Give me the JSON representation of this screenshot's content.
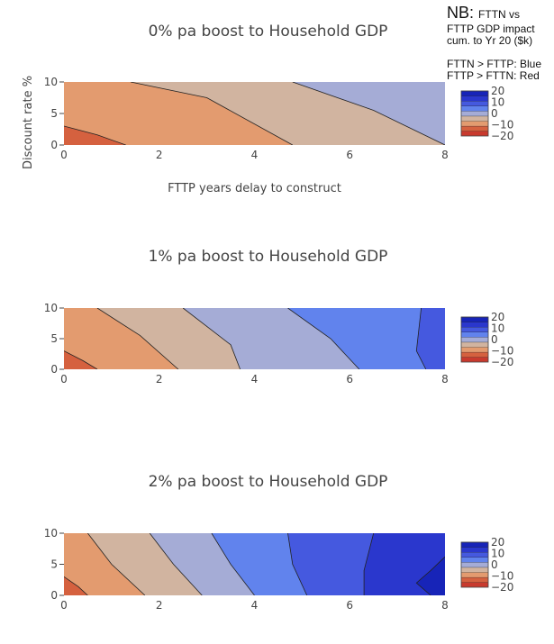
{
  "note": {
    "nb_label": "NB:",
    "nb_text": "FTTN vs",
    "line2": "FTTP GDP impact",
    "line3": "cum. to Yr 20 ($k)",
    "line4": "FTTN > FTTP: Blue",
    "line5": "FTTP > FTTN: Red"
  },
  "colors": {
    "levels": [
      "#c83a2e",
      "#d5613f",
      "#e39b6f",
      "#d1b4a0",
      "#a5acd6",
      "#6183ed",
      "#4559df",
      "#2a37cd",
      "#1724b8"
    ],
    "contour_line": "#222222"
  },
  "chart_data": [
    {
      "type": "contour",
      "title": "0% pa boost to Household GDP",
      "xlabel": "FTTP years delay to construct",
      "ylabel": "Discount rate %",
      "xlim": [
        0,
        8
      ],
      "ylim": [
        0,
        10
      ],
      "x_ticks": [
        "0",
        "2",
        "4",
        "6",
        "8"
      ],
      "y_ticks": [
        "0",
        "5",
        "10"
      ],
      "colorbar_ticks": [
        "20",
        "10",
        "0",
        "−10",
        "−20"
      ],
      "colorbar_range": [
        -20,
        20
      ],
      "regions": [
        {
          "level": 2,
          "polygon": [
            [
              0,
              0
            ],
            [
              8,
              0
            ],
            [
              8,
              10
            ],
            [
              0,
              10
            ]
          ]
        },
        {
          "level": 3,
          "polygon": [
            [
              1.4,
              10
            ],
            [
              3,
              7.5
            ],
            [
              4.8,
              0
            ],
            [
              8,
              0
            ],
            [
              8,
              10
            ]
          ]
        },
        {
          "level": 4,
          "polygon": [
            [
              4.8,
              10
            ],
            [
              6.5,
              5.5
            ],
            [
              8,
              0
            ],
            [
              8,
              10
            ]
          ]
        },
        {
          "level": 1,
          "polygon": [
            [
              0,
              0
            ],
            [
              0,
              3
            ],
            [
              0.7,
              1.6
            ],
            [
              1.3,
              0
            ]
          ]
        }
      ],
      "contours": [
        [
          [
            0,
            3
          ],
          [
            0.7,
            1.6
          ],
          [
            1.3,
            0
          ]
        ],
        [
          [
            1.4,
            10
          ],
          [
            3,
            7.5
          ],
          [
            4.8,
            0
          ]
        ],
        [
          [
            4.8,
            10
          ],
          [
            6.5,
            5.5
          ],
          [
            8,
            0
          ]
        ]
      ]
    },
    {
      "type": "contour",
      "title": "1% pa boost to Household GDP",
      "xlabel": "",
      "ylabel": "",
      "xlim": [
        0,
        8
      ],
      "ylim": [
        0,
        10
      ],
      "x_ticks": [
        "0",
        "2",
        "4",
        "6",
        "8"
      ],
      "y_ticks": [
        "0",
        "5",
        "10"
      ],
      "colorbar_ticks": [
        "20",
        "10",
        "0",
        "−10",
        "−20"
      ],
      "colorbar_range": [
        -20,
        20
      ],
      "regions": [
        {
          "level": 2,
          "polygon": [
            [
              0,
              0
            ],
            [
              8,
              0
            ],
            [
              8,
              10
            ],
            [
              0,
              10
            ]
          ]
        },
        {
          "level": 3,
          "polygon": [
            [
              0.7,
              10
            ],
            [
              1.6,
              5.5
            ],
            [
              2.4,
              0
            ],
            [
              8,
              0
            ],
            [
              8,
              10
            ]
          ]
        },
        {
          "level": 4,
          "polygon": [
            [
              2.5,
              10
            ],
            [
              3.5,
              4
            ],
            [
              3.7,
              0
            ],
            [
              8,
              0
            ],
            [
              8,
              10
            ]
          ]
        },
        {
          "level": 5,
          "polygon": [
            [
              4.7,
              10
            ],
            [
              5.6,
              5
            ],
            [
              6.2,
              0
            ],
            [
              8,
              0
            ],
            [
              8,
              10
            ]
          ]
        },
        {
          "level": 6,
          "polygon": [
            [
              7.5,
              10
            ],
            [
              7.4,
              3
            ],
            [
              7.6,
              0
            ],
            [
              8,
              0
            ],
            [
              8,
              10
            ]
          ]
        },
        {
          "level": 1,
          "polygon": [
            [
              0,
              0
            ],
            [
              0,
              3
            ],
            [
              0.4,
              1.4
            ],
            [
              0.7,
              0
            ]
          ]
        }
      ],
      "contours": [
        [
          [
            0,
            3
          ],
          [
            0.4,
            1.4
          ],
          [
            0.7,
            0
          ]
        ],
        [
          [
            0.7,
            10
          ],
          [
            1.6,
            5.5
          ],
          [
            2.4,
            0
          ]
        ],
        [
          [
            2.5,
            10
          ],
          [
            3.5,
            4
          ],
          [
            3.7,
            0
          ]
        ],
        [
          [
            4.7,
            10
          ],
          [
            5.6,
            5
          ],
          [
            6.2,
            0
          ]
        ],
        [
          [
            7.5,
            10
          ],
          [
            7.4,
            3
          ],
          [
            7.6,
            0
          ]
        ]
      ]
    },
    {
      "type": "contour",
      "title": "2% pa boost to Household GDP",
      "xlabel": "",
      "ylabel": "",
      "xlim": [
        0,
        8
      ],
      "ylim": [
        0,
        10
      ],
      "x_ticks": [
        "0",
        "2",
        "4",
        "6",
        "8"
      ],
      "y_ticks": [
        "0",
        "5",
        "10"
      ],
      "colorbar_ticks": [
        "20",
        "10",
        "0",
        "−10",
        "−20"
      ],
      "colorbar_range": [
        -20,
        20
      ],
      "regions": [
        {
          "level": 2,
          "polygon": [
            [
              0,
              0
            ],
            [
              8,
              0
            ],
            [
              8,
              10
            ],
            [
              0,
              10
            ]
          ]
        },
        {
          "level": 3,
          "polygon": [
            [
              0.5,
              10
            ],
            [
              1,
              5
            ],
            [
              1.7,
              0
            ],
            [
              8,
              0
            ],
            [
              8,
              10
            ]
          ]
        },
        {
          "level": 4,
          "polygon": [
            [
              1.8,
              10
            ],
            [
              2.3,
              5
            ],
            [
              2.9,
              0
            ],
            [
              8,
              0
            ],
            [
              8,
              10
            ]
          ]
        },
        {
          "level": 5,
          "polygon": [
            [
              3.1,
              10
            ],
            [
              3.5,
              5
            ],
            [
              4.0,
              0
            ],
            [
              8,
              0
            ],
            [
              8,
              10
            ]
          ]
        },
        {
          "level": 6,
          "polygon": [
            [
              4.7,
              10
            ],
            [
              4.8,
              5
            ],
            [
              5.1,
              0
            ],
            [
              8,
              0
            ],
            [
              8,
              10
            ]
          ]
        },
        {
          "level": 7,
          "polygon": [
            [
              6.5,
              10
            ],
            [
              6.3,
              4
            ],
            [
              6.3,
              0
            ],
            [
              8,
              0
            ],
            [
              8,
              10
            ]
          ]
        },
        {
          "level": 8,
          "polygon": [
            [
              7.7,
              0
            ],
            [
              8,
              0
            ],
            [
              8,
              6.2
            ],
            [
              7.7,
              4
            ],
            [
              7.4,
              2
            ]
          ]
        },
        {
          "level": 1,
          "polygon": [
            [
              0,
              0
            ],
            [
              0,
              3
            ],
            [
              0.3,
              1.4
            ],
            [
              0.5,
              0
            ]
          ]
        }
      ],
      "contours": [
        [
          [
            0,
            3
          ],
          [
            0.3,
            1.4
          ],
          [
            0.5,
            0
          ]
        ],
        [
          [
            0.5,
            10
          ],
          [
            1,
            5
          ],
          [
            1.7,
            0
          ]
        ],
        [
          [
            1.8,
            10
          ],
          [
            2.3,
            5
          ],
          [
            2.9,
            0
          ]
        ],
        [
          [
            3.1,
            10
          ],
          [
            3.5,
            5
          ],
          [
            4.0,
            0
          ]
        ],
        [
          [
            4.7,
            10
          ],
          [
            4.8,
            5
          ],
          [
            5.1,
            0
          ]
        ],
        [
          [
            6.5,
            10
          ],
          [
            6.3,
            4
          ],
          [
            6.3,
            0
          ]
        ],
        [
          [
            8,
            6.2
          ],
          [
            7.7,
            4
          ],
          [
            7.4,
            2
          ],
          [
            7.7,
            0
          ]
        ]
      ]
    }
  ]
}
